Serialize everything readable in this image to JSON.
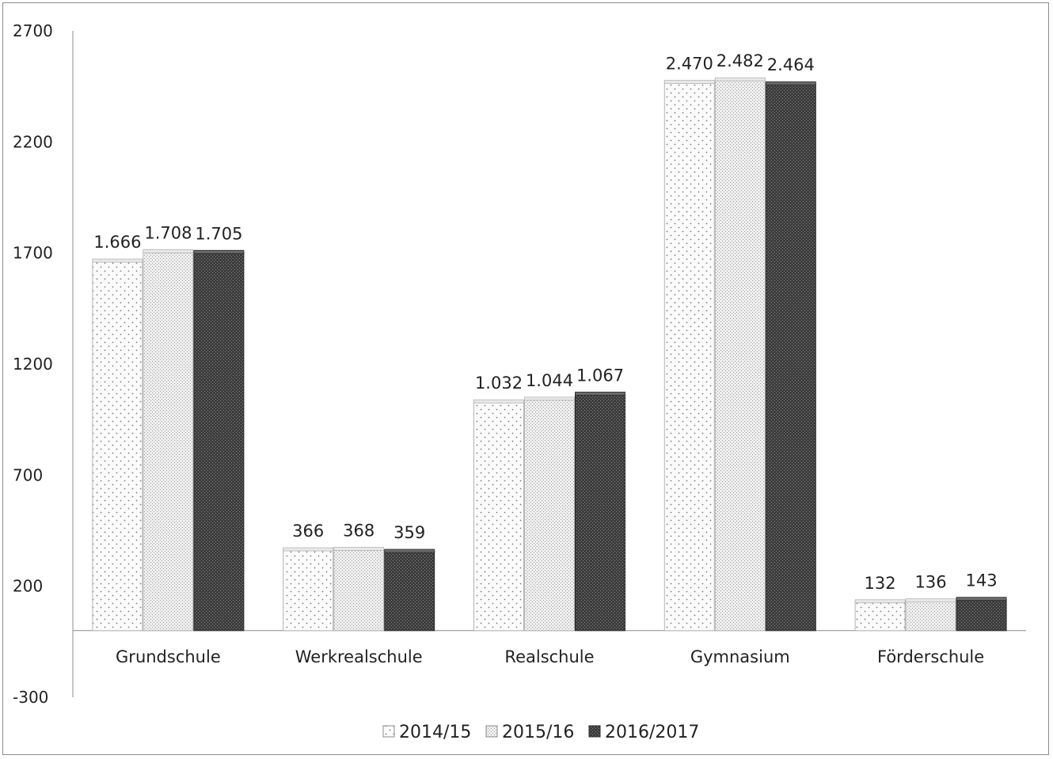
{
  "chart_data": {
    "type": "bar",
    "title": "",
    "xlabel": "",
    "ylabel": "",
    "ylim": [
      -300,
      2700
    ],
    "yticks": [
      2700,
      2200,
      1700,
      1200,
      700,
      200,
      -300
    ],
    "categories": [
      "Grundschule",
      "Werkrealschule",
      "Realschule",
      "Gymnasium",
      "Förderschule"
    ],
    "series": [
      {
        "name": "2014/15",
        "values": [
          1666,
          366,
          1032,
          2470,
          132
        ],
        "labels": [
          "1.666",
          "366",
          "1.032",
          "2.470",
          "132"
        ],
        "color": "#f2f2f2"
      },
      {
        "name": "2015/16",
        "values": [
          1708,
          368,
          1044,
          2482,
          136
        ],
        "labels": [
          "1.708",
          "368",
          "1.044",
          "2.482",
          "136"
        ],
        "color": "#e3e3e3"
      },
      {
        "name": "2016/2017",
        "values": [
          1705,
          359,
          1067,
          2464,
          143
        ],
        "labels": [
          "1.705",
          "359",
          "1.067",
          "2.464",
          "143"
        ],
        "color": "#4a4a4a"
      }
    ],
    "grid": false,
    "legend": "bottom"
  }
}
